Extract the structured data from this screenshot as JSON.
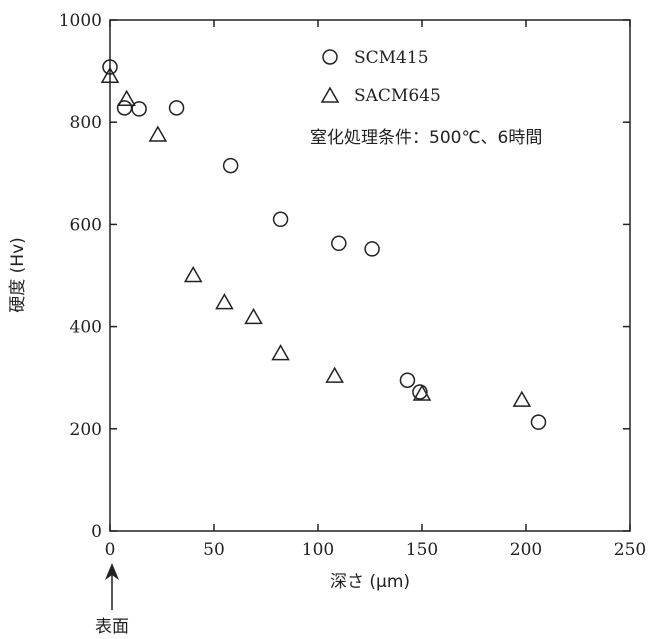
{
  "chart_data": {
    "type": "scatter",
    "xlabel": "深さ (μm)",
    "ylabel": "硬度 (Hv)",
    "xlim": [
      0,
      250
    ],
    "ylim": [
      0,
      1000
    ],
    "xticks": [
      0,
      50,
      100,
      150,
      200,
      250
    ],
    "yticks": [
      0,
      200,
      400,
      600,
      800,
      1000
    ],
    "grid": false,
    "legend_position": "top-right",
    "annotation": "窒化処理条件：500℃、6時間",
    "surface_label": "表面",
    "series": [
      {
        "name": "SCM415",
        "marker": "circle",
        "points": [
          [
            0,
            908
          ],
          [
            7,
            828
          ],
          [
            14,
            826
          ],
          [
            32,
            828
          ],
          [
            58,
            715
          ],
          [
            82,
            610
          ],
          [
            110,
            563
          ],
          [
            126,
            552
          ],
          [
            143,
            295
          ],
          [
            149,
            272
          ],
          [
            206,
            213
          ]
        ]
      },
      {
        "name": "SACM645",
        "marker": "triangle",
        "points": [
          [
            0,
            890
          ],
          [
            8,
            845
          ],
          [
            23,
            775
          ],
          [
            40,
            500
          ],
          [
            55,
            447
          ],
          [
            69,
            418
          ],
          [
            82,
            347
          ],
          [
            108,
            303
          ],
          [
            150,
            268
          ],
          [
            198,
            256
          ]
        ]
      }
    ]
  },
  "colors": {
    "axis": "#222222",
    "marker_stroke": "#222222",
    "background": "#ffffff"
  }
}
